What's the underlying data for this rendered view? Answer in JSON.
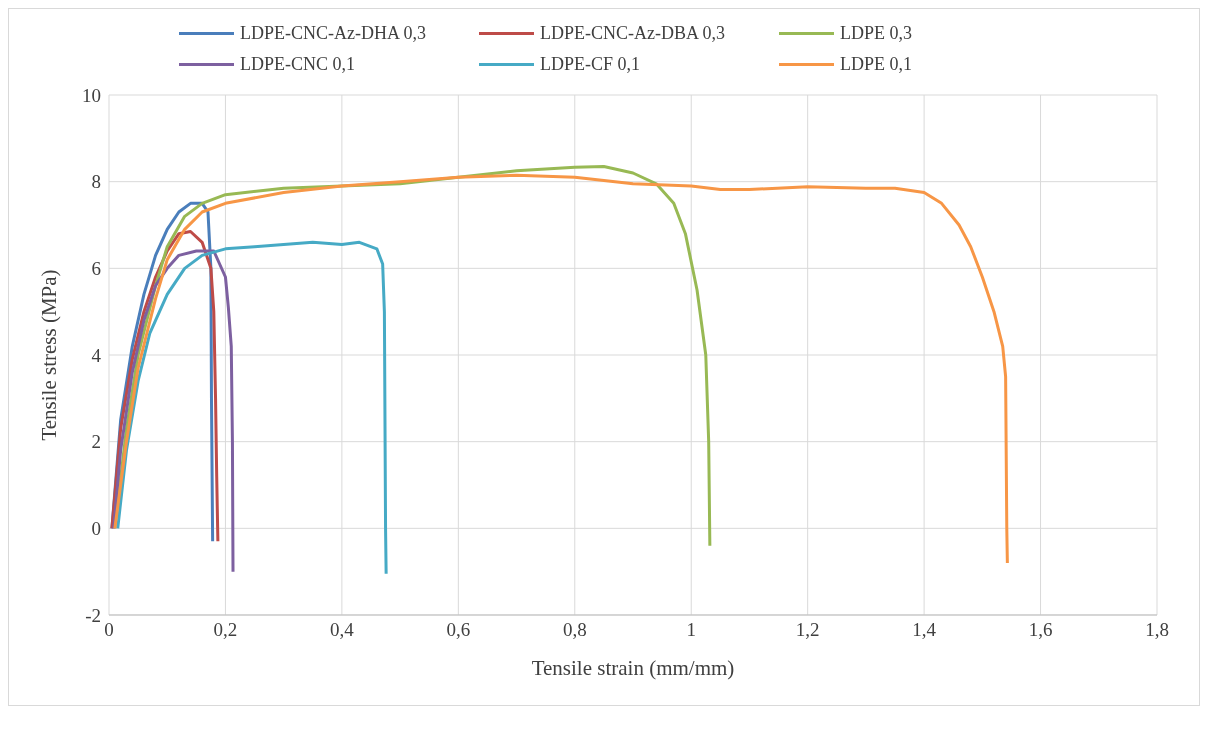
{
  "chart_data": {
    "type": "line",
    "xlabel": "Tensile strain (mm/mm)",
    "ylabel": "Tensile stress (MPa)",
    "xlim": [
      0,
      1.8
    ],
    "xticks": [
      0,
      {
        "value": 0.2,
        "label": "0,2"
      },
      {
        "value": 0.4,
        "label": "0,4"
      },
      {
        "value": 0.6,
        "label": "0,6"
      },
      {
        "value": 0.8,
        "label": "0,8"
      },
      1,
      {
        "value": 1.2,
        "label": "1,2"
      },
      {
        "value": 1.4,
        "label": "1,4"
      },
      {
        "value": 1.6,
        "label": "1,6"
      },
      {
        "value": 1.8,
        "label": "1,8"
      }
    ],
    "ylim": [
      -2,
      10
    ],
    "yticks": [
      -2,
      0,
      2,
      4,
      6,
      8,
      10
    ],
    "grid": true,
    "legend": "top",
    "marker": "none",
    "line_style": "solid",
    "series": [
      {
        "name": "LDPE-CNC-Az-DHA 0,3",
        "color": "#4a7ebb",
        "x": [
          0.005,
          0.02,
          0.04,
          0.06,
          0.08,
          0.1,
          0.12,
          0.14,
          0.16,
          0.17,
          0.175,
          0.176,
          0.178
        ],
        "values": [
          0,
          2.5,
          4.2,
          5.4,
          6.3,
          6.9,
          7.3,
          7.5,
          7.5,
          7.3,
          6,
          3,
          -0.3
        ]
      },
      {
        "name": "LDPE-CNC-Az-DBA 0,3",
        "color": "#be4b48",
        "x": [
          0.005,
          0.02,
          0.04,
          0.06,
          0.08,
          0.1,
          0.12,
          0.14,
          0.16,
          0.175,
          0.18,
          0.183,
          0.185,
          0.187
        ],
        "values": [
          0,
          2.3,
          3.9,
          5,
          5.8,
          6.4,
          6.8,
          6.85,
          6.6,
          6,
          5,
          3,
          1.2,
          -0.3
        ]
      },
      {
        "name": "LDPE 0,3",
        "color": "#98b954",
        "x": [
          0.01,
          0.03,
          0.05,
          0.08,
          0.1,
          0.13,
          0.16,
          0.2,
          0.3,
          0.4,
          0.5,
          0.6,
          0.7,
          0.8,
          0.85,
          0.9,
          0.94,
          0.97,
          0.99,
          1.01,
          1.025,
          1.03,
          1.032
        ],
        "values": [
          0,
          2.3,
          4,
          5.6,
          6.5,
          7.2,
          7.5,
          7.7,
          7.85,
          7.9,
          7.95,
          8.1,
          8.25,
          8.33,
          8.35,
          8.2,
          7.95,
          7.5,
          6.8,
          5.5,
          4,
          2,
          -0.4
        ]
      },
      {
        "name": "LDPE-CNC 0,1",
        "color": "#7d60a0",
        "x": [
          0.008,
          0.02,
          0.04,
          0.06,
          0.08,
          0.1,
          0.12,
          0.15,
          0.18,
          0.19,
          0.2,
          0.205,
          0.21,
          0.212,
          0.213
        ],
        "values": [
          0,
          1.8,
          3.6,
          4.8,
          5.6,
          6,
          6.3,
          6.4,
          6.4,
          6.1,
          5.8,
          5.1,
          4.2,
          2,
          -1
        ]
      },
      {
        "name": "LDPE-CF 0,1",
        "color": "#46aac5",
        "x": [
          0.015,
          0.03,
          0.05,
          0.07,
          0.1,
          0.13,
          0.16,
          0.2,
          0.25,
          0.3,
          0.35,
          0.4,
          0.43,
          0.46,
          0.47,
          0.473,
          0.475,
          0.476
        ],
        "values": [
          0,
          1.8,
          3.4,
          4.5,
          5.4,
          6,
          6.3,
          6.45,
          6.5,
          6.55,
          6.6,
          6.55,
          6.6,
          6.45,
          6.1,
          5,
          0,
          -1.05
        ]
      },
      {
        "name": "LDPE 0,1",
        "color": "#f79646",
        "x": [
          0.01,
          0.03,
          0.05,
          0.08,
          0.1,
          0.13,
          0.16,
          0.2,
          0.3,
          0.4,
          0.5,
          0.6,
          0.7,
          0.8,
          0.9,
          1,
          1.05,
          1.1,
          1.2,
          1.3,
          1.35,
          1.4,
          1.43,
          1.46,
          1.48,
          1.5,
          1.52,
          1.535,
          1.54,
          1.542,
          1.543
        ],
        "values": [
          0,
          2,
          3.7,
          5.3,
          6.2,
          6.9,
          7.3,
          7.5,
          7.75,
          7.9,
          8,
          8.1,
          8.15,
          8.1,
          7.95,
          7.9,
          7.82,
          7.82,
          7.88,
          7.85,
          7.85,
          7.75,
          7.5,
          7,
          6.5,
          5.8,
          5,
          4.2,
          3.5,
          0,
          -0.8
        ]
      }
    ]
  }
}
